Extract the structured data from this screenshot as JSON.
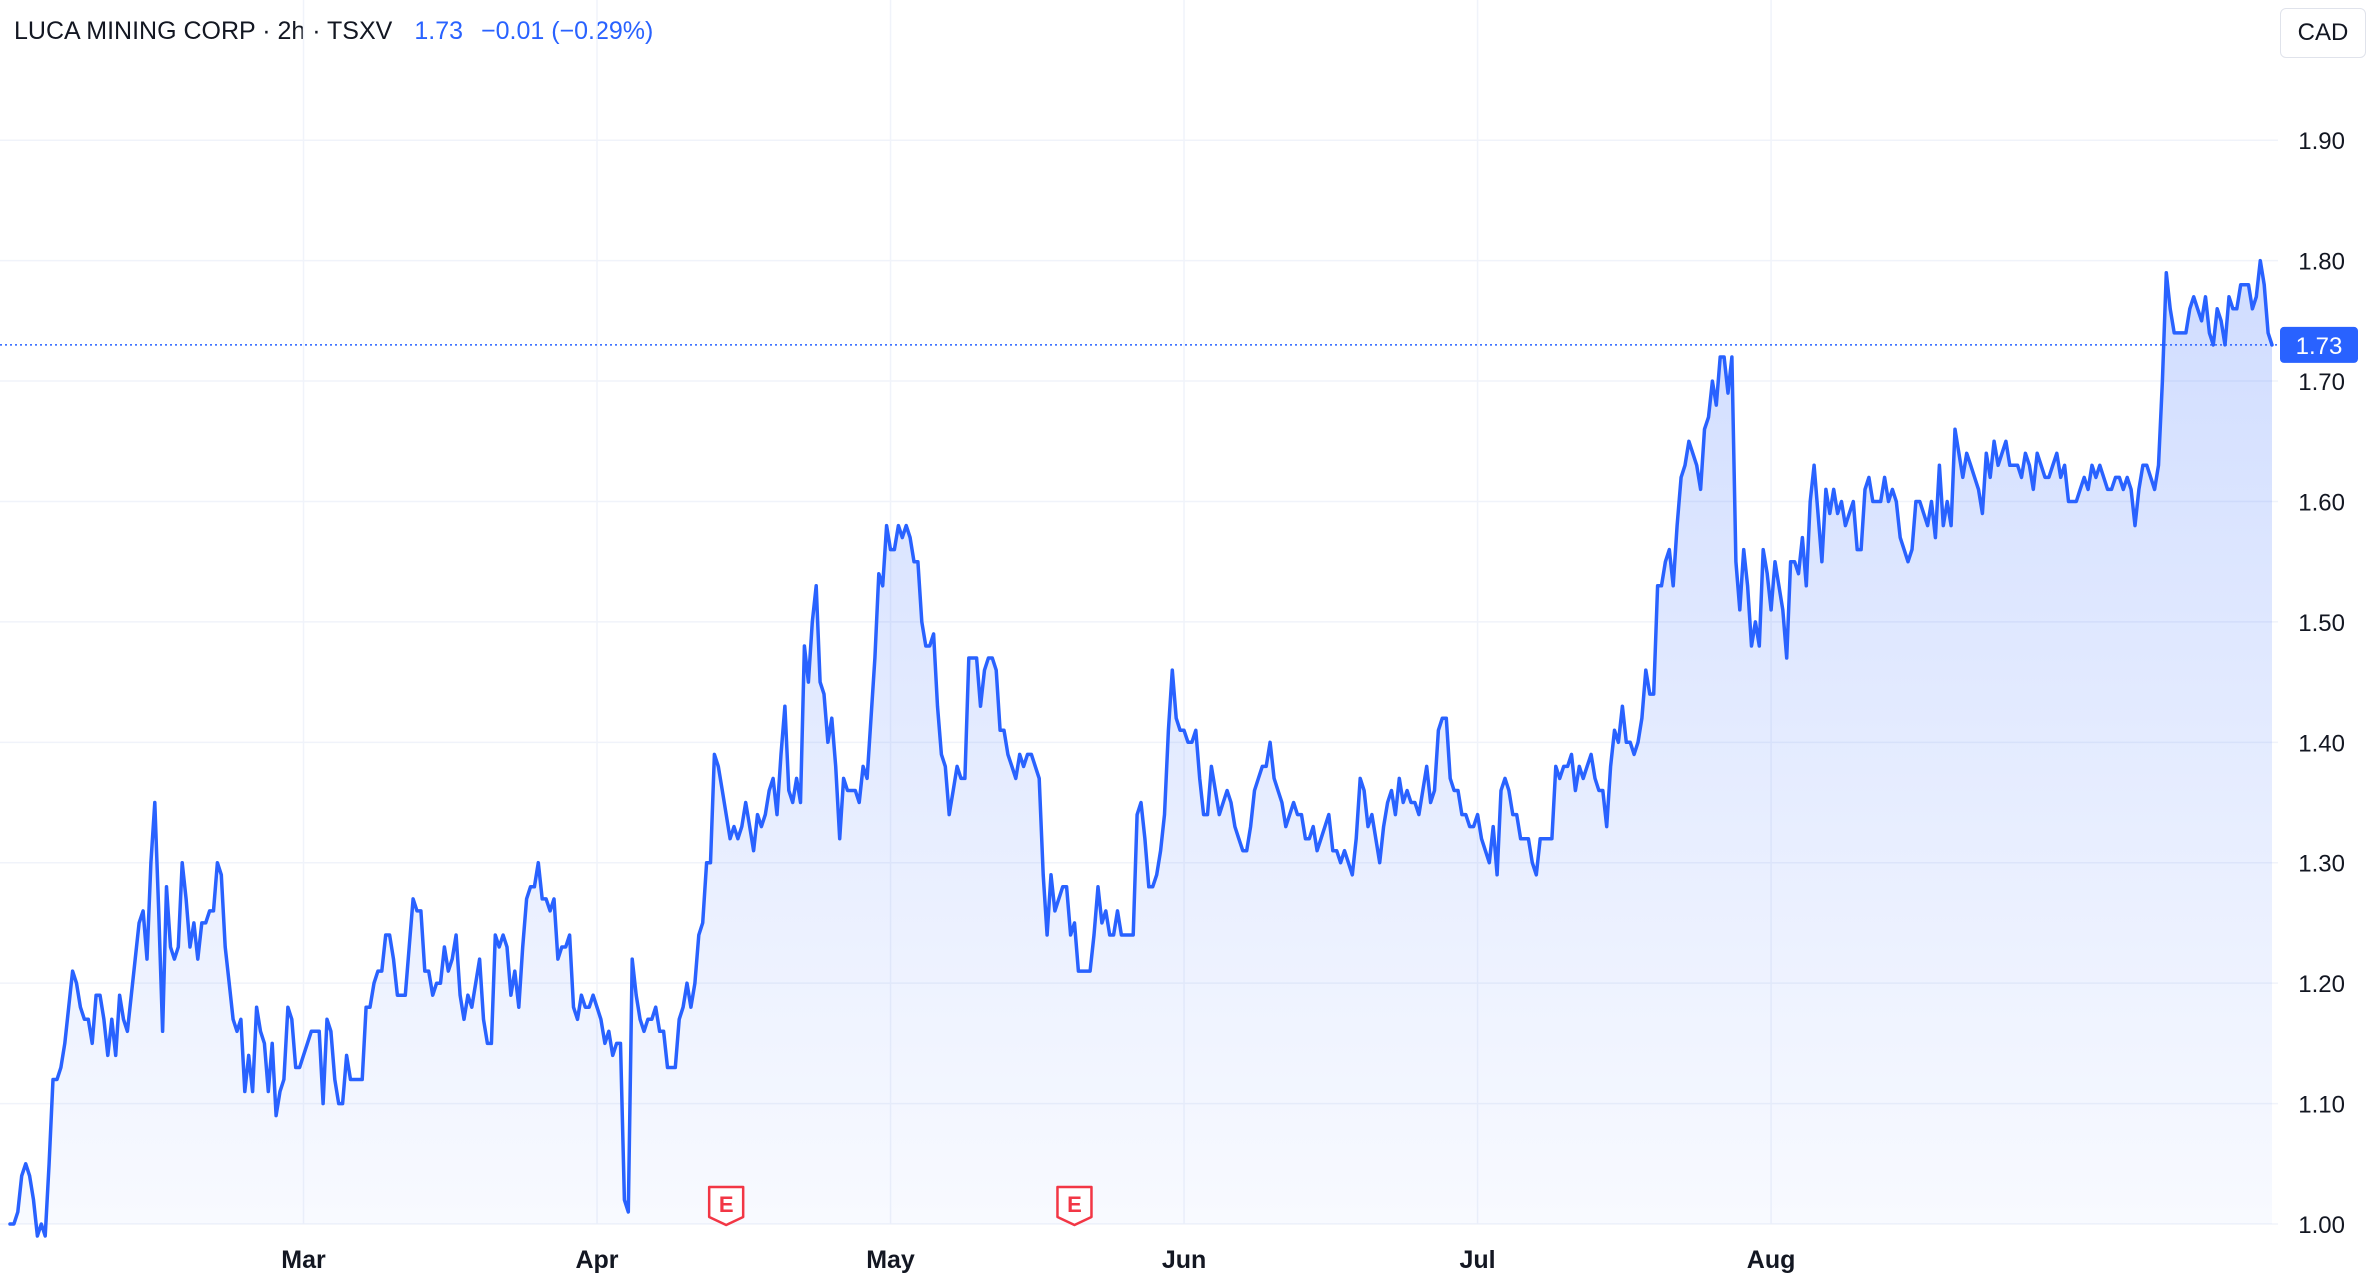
{
  "legend": {
    "symbol": "LUCA MINING CORP · 2h · TSXV",
    "price": "1.73",
    "change": "−0.01 (−0.29%)"
  },
  "currency_button": "CAD",
  "colors": {
    "line": "#2962ff",
    "grid": "#f0f3fa",
    "text": "#131722",
    "earnings": "#f23645"
  },
  "chart_data": {
    "type": "area",
    "title": "",
    "xlabel": "",
    "ylabel": "",
    "ylim": [
      1.0,
      1.95
    ],
    "y_ticks": [
      "1.00",
      "1.10",
      "1.20",
      "1.30",
      "1.40",
      "1.50",
      "1.60",
      "1.70",
      "1.80",
      "1.90"
    ],
    "x_tick_labels": [
      {
        "label": "Mar",
        "index": 75
      },
      {
        "label": "Apr",
        "index": 150
      },
      {
        "label": "May",
        "index": 225
      },
      {
        "label": "Jun",
        "index": 300
      },
      {
        "label": "Jul",
        "index": 375
      },
      {
        "label": "Aug",
        "index": 450
      }
    ],
    "grid": true,
    "last_price": {
      "value": 1.73,
      "label": "1.73"
    },
    "earnings_markers": [
      {
        "label": "E",
        "index": 183
      },
      {
        "label": "E",
        "index": 272
      }
    ],
    "series": [
      {
        "values": [
          1.0,
          1.0,
          1.01,
          1.04,
          1.05,
          1.04,
          1.02,
          0.99,
          1.0,
          0.99,
          1.05,
          1.12,
          1.12,
          1.13,
          1.15,
          1.18,
          1.21,
          1.2,
          1.18,
          1.17,
          1.17,
          1.15,
          1.19,
          1.19,
          1.17,
          1.14,
          1.17,
          1.14,
          1.19,
          1.17,
          1.16,
          1.19,
          1.22,
          1.25,
          1.26,
          1.22,
          1.3,
          1.35,
          1.26,
          1.16,
          1.28,
          1.23,
          1.22,
          1.23,
          1.3,
          1.27,
          1.23,
          1.25,
          1.22,
          1.25,
          1.25,
          1.26,
          1.26,
          1.3,
          1.29,
          1.23,
          1.2,
          1.17,
          1.16,
          1.17,
          1.11,
          1.14,
          1.11,
          1.18,
          1.16,
          1.15,
          1.11,
          1.15,
          1.09,
          1.11,
          1.12,
          1.18,
          1.17,
          1.13,
          1.13,
          1.14,
          1.15,
          1.16,
          1.16,
          1.16,
          1.1,
          1.17,
          1.16,
          1.12,
          1.1,
          1.1,
          1.14,
          1.12,
          1.12,
          1.12,
          1.12,
          1.18,
          1.18,
          1.2,
          1.21,
          1.21,
          1.24,
          1.24,
          1.22,
          1.19,
          1.19,
          1.19,
          1.23,
          1.27,
          1.26,
          1.26,
          1.21,
          1.21,
          1.19,
          1.2,
          1.2,
          1.23,
          1.21,
          1.22,
          1.24,
          1.19,
          1.17,
          1.19,
          1.18,
          1.2,
          1.22,
          1.17,
          1.15,
          1.15,
          1.24,
          1.23,
          1.24,
          1.23,
          1.19,
          1.21,
          1.18,
          1.23,
          1.27,
          1.28,
          1.28,
          1.3,
          1.27,
          1.27,
          1.26,
          1.27,
          1.22,
          1.23,
          1.23,
          1.24,
          1.18,
          1.17,
          1.19,
          1.18,
          1.18,
          1.19,
          1.18,
          1.17,
          1.15,
          1.16,
          1.14,
          1.15,
          1.15,
          1.02,
          1.01,
          1.22,
          1.19,
          1.17,
          1.16,
          1.17,
          1.17,
          1.18,
          1.16,
          1.16,
          1.13,
          1.13,
          1.13,
          1.17,
          1.18,
          1.2,
          1.18,
          1.2,
          1.24,
          1.25,
          1.3,
          1.3,
          1.39,
          1.38,
          1.36,
          1.34,
          1.32,
          1.33,
          1.32,
          1.33,
          1.35,
          1.33,
          1.31,
          1.34,
          1.33,
          1.34,
          1.36,
          1.37,
          1.34,
          1.39,
          1.43,
          1.36,
          1.35,
          1.37,
          1.35,
          1.48,
          1.45,
          1.5,
          1.53,
          1.45,
          1.44,
          1.4,
          1.42,
          1.38,
          1.32,
          1.37,
          1.36,
          1.36,
          1.36,
          1.35,
          1.38,
          1.37,
          1.42,
          1.47,
          1.54,
          1.53,
          1.58,
          1.56,
          1.56,
          1.58,
          1.57,
          1.58,
          1.57,
          1.55,
          1.55,
          1.5,
          1.48,
          1.48,
          1.49,
          1.43,
          1.39,
          1.38,
          1.34,
          1.36,
          1.38,
          1.37,
          1.37,
          1.47,
          1.47,
          1.47,
          1.43,
          1.46,
          1.47,
          1.47,
          1.46,
          1.41,
          1.41,
          1.39,
          1.38,
          1.37,
          1.39,
          1.38,
          1.39,
          1.39,
          1.38,
          1.37,
          1.29,
          1.24,
          1.29,
          1.26,
          1.27,
          1.28,
          1.28,
          1.24,
          1.25,
          1.21,
          1.21,
          1.21,
          1.21,
          1.24,
          1.28,
          1.25,
          1.26,
          1.24,
          1.24,
          1.26,
          1.24,
          1.24,
          1.24,
          1.24,
          1.34,
          1.35,
          1.32,
          1.28,
          1.28,
          1.29,
          1.31,
          1.34,
          1.41,
          1.46,
          1.42,
          1.41,
          1.41,
          1.4,
          1.4,
          1.41,
          1.37,
          1.34,
          1.34,
          1.38,
          1.36,
          1.34,
          1.35,
          1.36,
          1.35,
          1.33,
          1.32,
          1.31,
          1.31,
          1.33,
          1.36,
          1.37,
          1.38,
          1.38,
          1.4,
          1.37,
          1.36,
          1.35,
          1.33,
          1.34,
          1.35,
          1.34,
          1.34,
          1.32,
          1.32,
          1.33,
          1.31,
          1.32,
          1.33,
          1.34,
          1.31,
          1.31,
          1.3,
          1.31,
          1.3,
          1.29,
          1.32,
          1.37,
          1.36,
          1.33,
          1.34,
          1.32,
          1.3,
          1.33,
          1.35,
          1.36,
          1.34,
          1.37,
          1.35,
          1.36,
          1.35,
          1.35,
          1.34,
          1.36,
          1.38,
          1.35,
          1.36,
          1.41,
          1.42,
          1.42,
          1.37,
          1.36,
          1.36,
          1.34,
          1.34,
          1.33,
          1.33,
          1.34,
          1.32,
          1.31,
          1.3,
          1.33,
          1.29,
          1.36,
          1.37,
          1.36,
          1.34,
          1.34,
          1.32,
          1.32,
          1.32,
          1.3,
          1.29,
          1.32,
          1.32,
          1.32,
          1.32,
          1.38,
          1.37,
          1.38,
          1.38,
          1.39,
          1.36,
          1.38,
          1.37,
          1.38,
          1.39,
          1.37,
          1.36,
          1.36,
          1.33,
          1.38,
          1.41,
          1.4,
          1.43,
          1.4,
          1.4,
          1.39,
          1.4,
          1.42,
          1.46,
          1.44,
          1.44,
          1.53,
          1.53,
          1.55,
          1.56,
          1.53,
          1.58,
          1.62,
          1.63,
          1.65,
          1.64,
          1.63,
          1.61,
          1.66,
          1.67,
          1.7,
          1.68,
          1.72,
          1.72,
          1.69,
          1.72,
          1.55,
          1.51,
          1.56,
          1.53,
          1.48,
          1.5,
          1.48,
          1.56,
          1.54,
          1.51,
          1.55,
          1.53,
          1.51,
          1.47,
          1.55,
          1.55,
          1.54,
          1.57,
          1.53,
          1.6,
          1.63,
          1.59,
          1.55,
          1.61,
          1.59,
          1.61,
          1.59,
          1.6,
          1.58,
          1.59,
          1.6,
          1.56,
          1.56,
          1.61,
          1.62,
          1.6,
          1.6,
          1.6,
          1.62,
          1.6,
          1.61,
          1.6,
          1.57,
          1.56,
          1.55,
          1.56,
          1.6,
          1.6,
          1.59,
          1.58,
          1.6,
          1.57,
          1.63,
          1.58,
          1.6,
          1.58,
          1.66,
          1.64,
          1.62,
          1.64,
          1.63,
          1.62,
          1.61,
          1.59,
          1.64,
          1.62,
          1.65,
          1.63,
          1.64,
          1.65,
          1.63,
          1.63,
          1.63,
          1.62,
          1.64,
          1.63,
          1.61,
          1.64,
          1.63,
          1.62,
          1.62,
          1.63,
          1.64,
          1.62,
          1.63,
          1.6,
          1.6,
          1.6,
          1.61,
          1.62,
          1.61,
          1.63,
          1.62,
          1.63,
          1.62,
          1.61,
          1.61,
          1.62,
          1.62,
          1.61,
          1.62,
          1.61,
          1.58,
          1.61,
          1.63,
          1.63,
          1.62,
          1.61,
          1.63,
          1.7,
          1.79,
          1.76,
          1.74,
          1.74,
          1.74,
          1.74,
          1.76,
          1.77,
          1.76,
          1.75,
          1.77,
          1.74,
          1.73,
          1.76,
          1.75,
          1.73,
          1.77,
          1.76,
          1.76,
          1.78,
          1.78,
          1.78,
          1.76,
          1.77,
          1.8,
          1.78,
          1.74,
          1.73
        ]
      }
    ]
  }
}
